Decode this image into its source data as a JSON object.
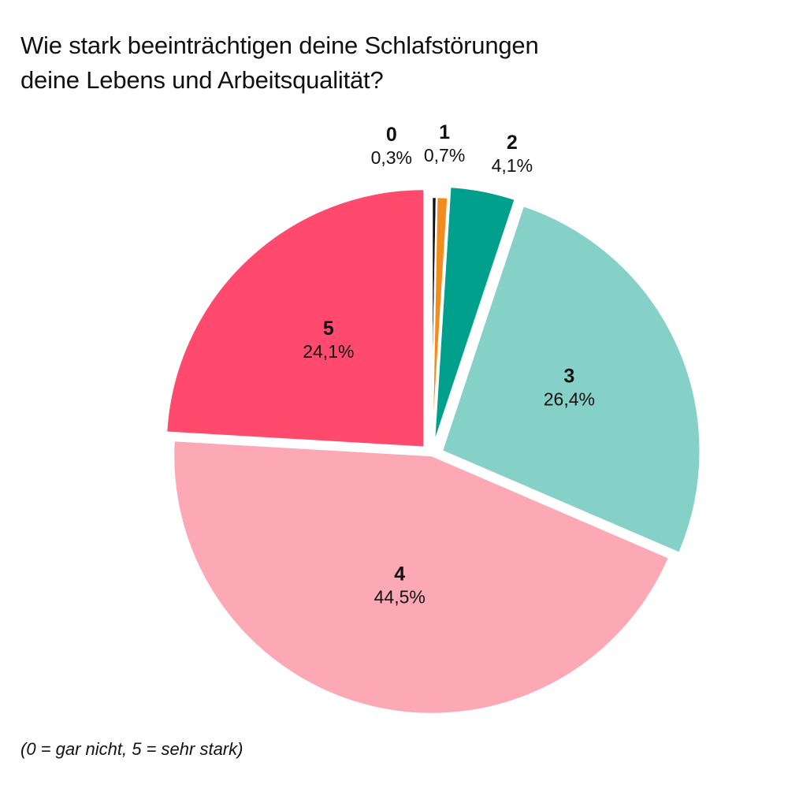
{
  "chart_data": {
    "type": "pie",
    "title": "Wie stark beeinträchtigen deine Schlafstörungen deine Lebens und Arbeitsqualität?",
    "title_lines": [
      "Wie stark beeinträchtigen deine Schlafstörungen",
      "deine Lebens und Arbeitsqualität?"
    ],
    "slices": [
      {
        "category": "0",
        "label": "0,3%",
        "value": 0.3,
        "color": "#111111",
        "exploded": false
      },
      {
        "category": "1",
        "label": "0,7%",
        "value": 0.7,
        "color": "#F28C1C",
        "exploded": false
      },
      {
        "category": "2",
        "label": "4,1%",
        "value": 4.1,
        "color": "#00A08C",
        "exploded": true
      },
      {
        "category": "3",
        "label": "26,4%",
        "value": 26.4,
        "color": "#86D1C7",
        "exploded": true
      },
      {
        "category": "4",
        "label": "44,5%",
        "value": 44.5,
        "color": "#FCA9B5",
        "exploded": false
      },
      {
        "category": "5",
        "label": "24,1%",
        "value": 24.1,
        "color": "#FF4A6E",
        "exploded": true
      }
    ],
    "start_angle": "top",
    "direction": "clockwise",
    "footnote": "(0 = gar nicht, 5 = sehr stark)"
  }
}
